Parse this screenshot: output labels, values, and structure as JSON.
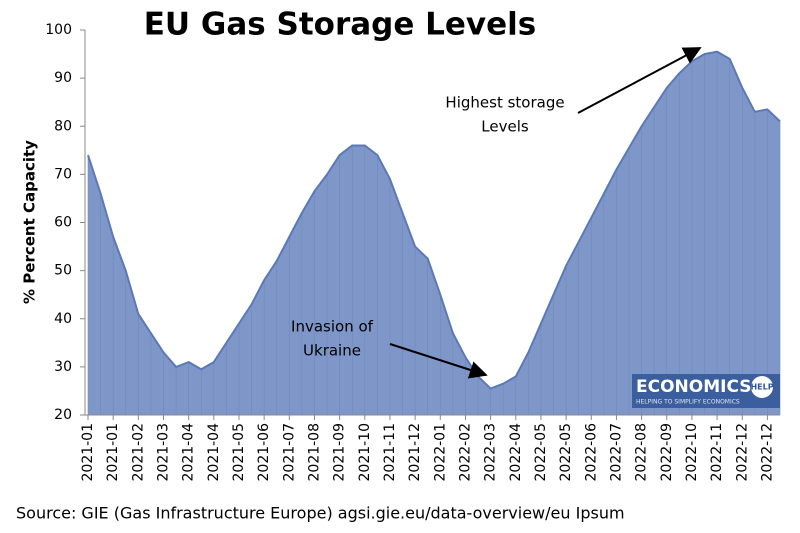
{
  "chart_data": {
    "type": "area",
    "title": "EU Gas Storage Levels",
    "y_label": "% Percent Capacity",
    "source": "Source: GIE (Gas Infrastructure Europe) agsi.gie.eu/data-overview/eu Ipsum",
    "annotations": [
      [
        "Highest storage",
        "Levels"
      ],
      [
        "Invasion of",
        "Ukraine"
      ]
    ],
    "logo": {
      "name": "ECONOMICS",
      "badge": "HELP",
      "tagline": "HELPING TO SIMPLIFY ECONOMICS"
    },
    "x": [
      0,
      2,
      4,
      6,
      8,
      10,
      12,
      14,
      16,
      18,
      20,
      22,
      24,
      26,
      28,
      30,
      32,
      34,
      36,
      38,
      40,
      42,
      44,
      46,
      48,
      50,
      52,
      54,
      56,
      58,
      60,
      62,
      64,
      66,
      68,
      70,
      72,
      74,
      76,
      78,
      80,
      82,
      84,
      86,
      88,
      90,
      92,
      94,
      96,
      98,
      100,
      102,
      104,
      106,
      108,
      110
    ],
    "values": [
      74,
      66,
      57,
      50,
      41,
      37,
      33,
      30,
      31,
      29.5,
      31,
      35,
      39,
      43,
      48,
      52,
      57,
      62,
      66.5,
      70,
      74,
      76,
      76,
      74,
      69,
      62,
      55,
      52.5,
      45,
      37,
      32,
      28,
      25.5,
      26.5,
      28,
      33,
      39,
      45,
      51,
      56,
      61,
      66,
      71,
      75.5,
      80,
      84,
      88,
      91,
      93.5,
      95,
      95.5,
      94,
      88,
      83,
      83.5,
      81
    ],
    "color": "#7f97c8",
    "line_color": "#5b79b8",
    "xlim": [
      0,
      110
    ],
    "xticks": [
      {
        "value": 0,
        "label": "2021-01"
      },
      {
        "value": 4,
        "label": "2021-01"
      },
      {
        "value": 8,
        "label": "2021-02"
      },
      {
        "value": 12,
        "label": "2021-03"
      },
      {
        "value": 16,
        "label": "2021-04"
      },
      {
        "value": 20,
        "label": "2021-04"
      },
      {
        "value": 24,
        "label": "2021-05"
      },
      {
        "value": 28,
        "label": "2021-06"
      },
      {
        "value": 32,
        "label": "2021-07"
      },
      {
        "value": 36,
        "label": "2021-08"
      },
      {
        "value": 40,
        "label": "2021-09"
      },
      {
        "value": 44,
        "label": "2021-10"
      },
      {
        "value": 48,
        "label": "2021-11"
      },
      {
        "value": 52,
        "label": "2021-12"
      },
      {
        "value": 56,
        "label": "2022-01"
      },
      {
        "value": 60,
        "label": "2022-02"
      },
      {
        "value": 64,
        "label": "2022-03"
      },
      {
        "value": 68,
        "label": "2022-04"
      },
      {
        "value": 72,
        "label": "2022-05"
      },
      {
        "value": 76,
        "label": "2022-05"
      },
      {
        "value": 80,
        "label": "2022-06"
      },
      {
        "value": 84,
        "label": "2022-07"
      },
      {
        "value": 88,
        "label": "2022-08"
      },
      {
        "value": 92,
        "label": "2022-09"
      },
      {
        "value": 96,
        "label": "2022-10"
      },
      {
        "value": 100,
        "label": "2022-11"
      },
      {
        "value": 104,
        "label": "2022-12"
      },
      {
        "value": 108,
        "label": "2022-12"
      }
    ],
    "ylim": [
      20,
      100
    ],
    "yticks": [
      20,
      30,
      40,
      50,
      60,
      70,
      80,
      90,
      100
    ]
  }
}
